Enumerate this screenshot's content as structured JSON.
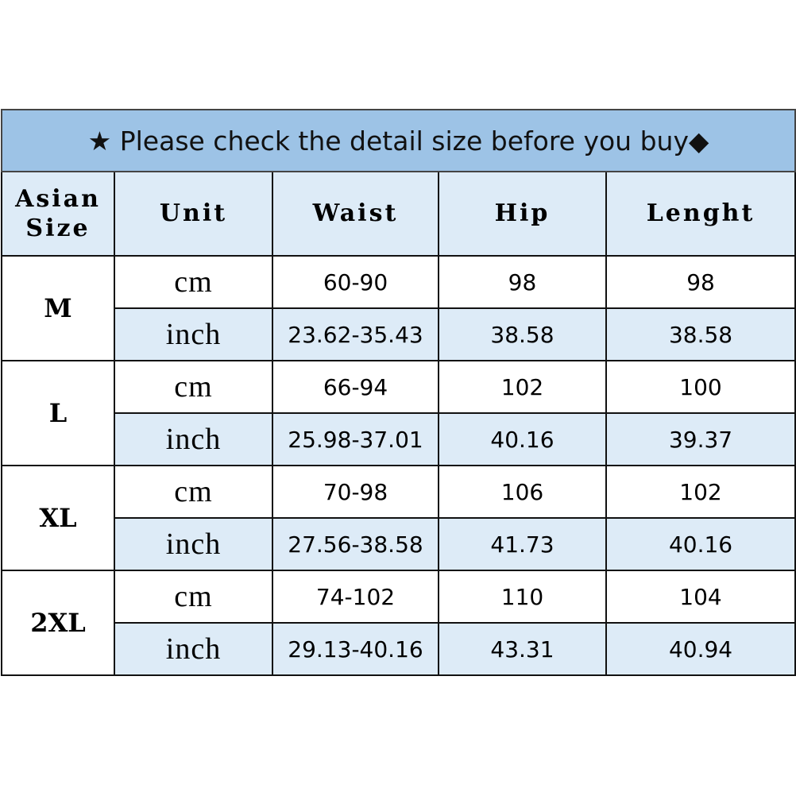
{
  "title": "★ Please check the detail size before you buy◆",
  "headers": [
    "Asian Size",
    "Unit",
    "Waist",
    "Hip",
    "Lenght"
  ],
  "colors": {
    "title_bg": "#9dc3e6",
    "header_bg": "#ddebf7",
    "alt_row_bg": "#ddebf7"
  },
  "sizes": [
    {
      "size": "M",
      "rows": [
        {
          "unit": "cm",
          "waist": "60-90",
          "hip": "98",
          "length": "98"
        },
        {
          "unit": "inch",
          "waist": "23.62-35.43",
          "hip": "38.58",
          "length": "38.58"
        }
      ]
    },
    {
      "size": "L",
      "rows": [
        {
          "unit": "cm",
          "waist": "66-94",
          "hip": "102",
          "length": "100"
        },
        {
          "unit": "inch",
          "waist": "25.98-37.01",
          "hip": "40.16",
          "length": "39.37"
        }
      ]
    },
    {
      "size": "XL",
      "rows": [
        {
          "unit": "cm",
          "waist": "70-98",
          "hip": "106",
          "length": "102"
        },
        {
          "unit": "inch",
          "waist": "27.56-38.58",
          "hip": "41.73",
          "length": "40.16"
        }
      ]
    },
    {
      "size": "2XL",
      "rows": [
        {
          "unit": "cm",
          "waist": "74-102",
          "hip": "110",
          "length": "104"
        },
        {
          "unit": "inch",
          "waist": "29.13-40.16",
          "hip": "43.31",
          "length": "40.94"
        }
      ]
    }
  ]
}
